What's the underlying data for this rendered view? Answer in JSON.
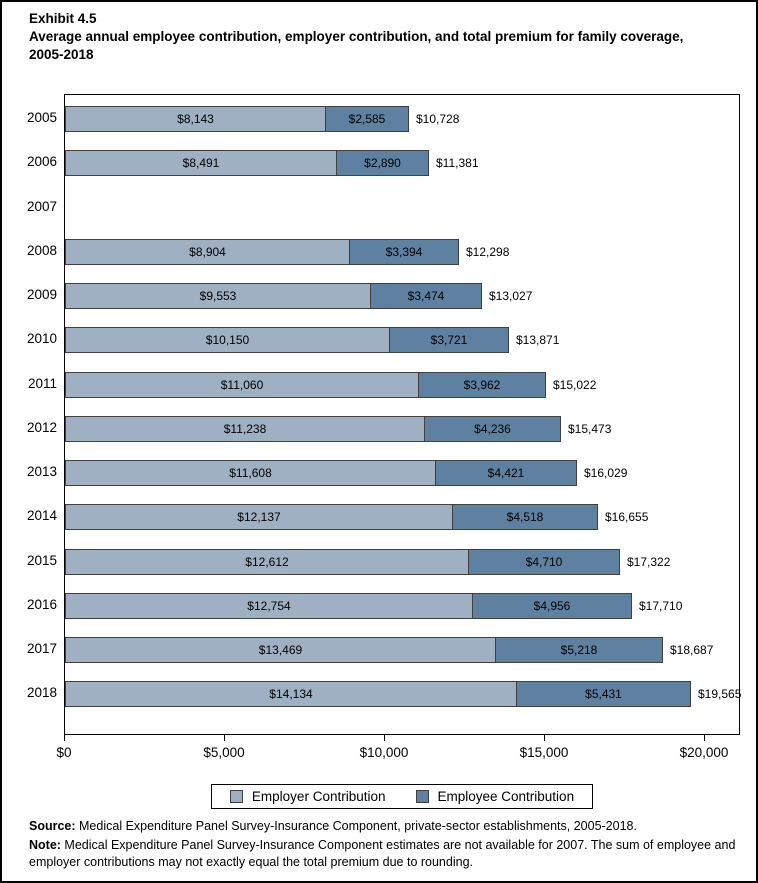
{
  "title": {
    "exhibit_label": "Exhibit 4.5",
    "title_text": "Average annual employee contribution, employer contribution, and total premium for family coverage, 2005-2018"
  },
  "chart_data": {
    "type": "bar",
    "orientation": "horizontal",
    "stacked": true,
    "title": "Average annual employee contribution, employer contribution, and total premium for family coverage, 2005-2018",
    "categories": [
      "2005",
      "2006",
      "2007",
      "2008",
      "2009",
      "2010",
      "2011",
      "2012",
      "2013",
      "2014",
      "2015",
      "2016",
      "2017",
      "2018"
    ],
    "series": [
      {
        "name": "Employer Contribution",
        "color": "#9EB0C2",
        "values": [
          8143,
          8491,
          null,
          8904,
          9553,
          10150,
          11060,
          11238,
          11608,
          12137,
          12612,
          12754,
          13469,
          14134
        ]
      },
      {
        "name": "Employee Contribution",
        "color": "#5E81A1",
        "values": [
          2585,
          2890,
          null,
          3394,
          3474,
          3721,
          3962,
          4236,
          4421,
          4518,
          4710,
          4956,
          5218,
          5431
        ]
      }
    ],
    "totals": [
      10728,
      11381,
      null,
      12298,
      13027,
      13871,
      15022,
      15473,
      16029,
      16655,
      17322,
      17710,
      18687,
      19565
    ],
    "labels": {
      "employer": [
        "$8,143",
        "$8,491",
        null,
        "$8,904",
        "$9,553",
        "$10,150",
        "$11,060",
        "$11,238",
        "$11,608",
        "$12,137",
        "$12,612",
        "$12,754",
        "$13,469",
        "$14,134"
      ],
      "employee": [
        "$2,585",
        "$2,890",
        null,
        "$3,394",
        "$3,474",
        "$3,721",
        "$3,962",
        "$4,236",
        "$4,421",
        "$4,518",
        "$4,710",
        "$4,956",
        "$5,218",
        "$5,431"
      ],
      "totals": [
        "$10,728",
        "$11,381",
        null,
        "$12,298",
        "$13,027",
        "$13,871",
        "$15,022",
        "$15,473",
        "$16,029",
        "$16,655",
        "$17,322",
        "$17,710",
        "$18,687",
        "$19,565"
      ]
    },
    "xlabel": "",
    "ylabel": "",
    "axis": {
      "min": 0,
      "max": 20000,
      "ticks": [
        {
          "value": 0,
          "label": "$0"
        },
        {
          "value": 5000,
          "label": "$5,000"
        },
        {
          "value": 10000,
          "label": "$10,000"
        },
        {
          "value": 15000,
          "label": "$15,000"
        },
        {
          "value": 20000,
          "label": "$20,000"
        }
      ]
    },
    "grid": false,
    "legend_position": "bottom",
    "missing_data_note": "Estimates are not available for 2007"
  },
  "colors": {
    "employer": "#9EB0C2",
    "employee": "#5E81A1",
    "bar_border": "#404040",
    "frame": "#000000"
  },
  "footer": {
    "source_label": "Source:",
    "source_text": " Medical Expenditure Panel Survey-Insurance Component, private-sector establishments, 2005-2018.",
    "note_label": "Note:",
    "note_text": " Medical Expenditure Panel Survey-Insurance Component estimates are not available for 2007. The sum of employee and employer contributions may not exactly equal the total premium due to rounding."
  }
}
